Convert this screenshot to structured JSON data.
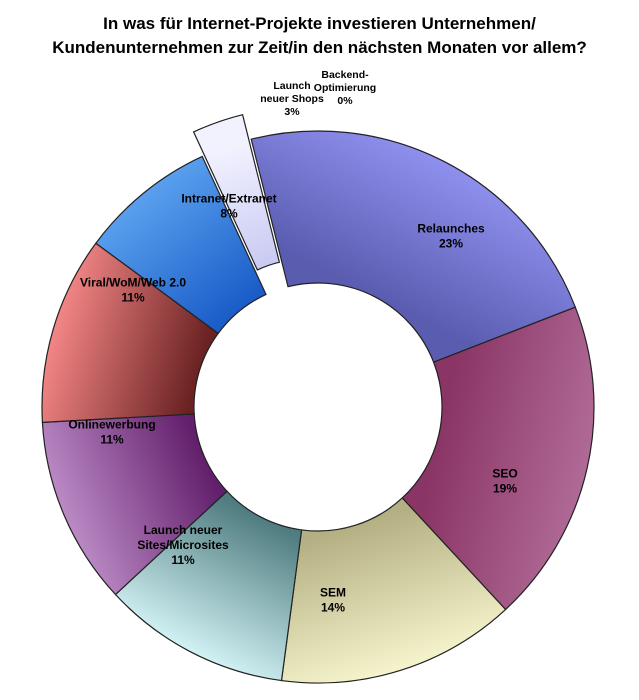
{
  "chart_data": {
    "type": "pie",
    "variant": "doughnut",
    "title": "In was für Internet-Projekte investieren Unternehmen/ Kundenunternehmen zur Zeit/in den nächsten Monaten vor allem?",
    "title_lines": [
      "In was für Internet-Projekte investieren Unternehmen/",
      "Kundenunternehmen zur Zeit/in den nächsten Monaten vor allem?"
    ],
    "legend": "none",
    "slices": [
      {
        "label": "Relaunches",
        "label_lines": [
          "Relaunches"
        ],
        "value": 23,
        "value_label": "23%",
        "color_light": "#8f90ee",
        "color_dark": "#5a5cb0",
        "exploded": false
      },
      {
        "label": "SEO",
        "label_lines": [
          "SEO"
        ],
        "value": 19,
        "value_label": "19%",
        "color_light": "#b06a96",
        "color_dark": "#8a3565",
        "exploded": false
      },
      {
        "label": "SEM",
        "label_lines": [
          "SEM"
        ],
        "value": 14,
        "value_label": "14%",
        "color_light": "#f6f4cc",
        "color_dark": "#b4b083",
        "exploded": false
      },
      {
        "label": "Launch neuer Sites/Microsites",
        "label_lines": [
          "Launch neuer",
          "Sites/Microsites"
        ],
        "value": 11,
        "value_label": "11%",
        "color_light": "#d2f2f4",
        "color_dark": "#4f7c80",
        "exploded": false
      },
      {
        "label": "Onlinewerbung",
        "label_lines": [
          "Onlinewerbung"
        ],
        "value": 11,
        "value_label": "11%",
        "color_light": "#bb8ac5",
        "color_dark": "#621f6b",
        "exploded": false
      },
      {
        "label": "Viral/WoM/Web 2.0",
        "label_lines": [
          "Viral/WoM/Web 2.0"
        ],
        "value": 11,
        "value_label": "11%",
        "color_light": "#f48686",
        "color_dark": "#6a2222",
        "exploded": false
      },
      {
        "label": "Intranet/Extranet",
        "label_lines": [
          "Intranet/Extranet"
        ],
        "value": 8,
        "value_label": "8%",
        "color_light": "#5aa0ee",
        "color_dark": "#1a5cc8",
        "exploded": false
      },
      {
        "label": "Launch neuer Shops",
        "label_lines": [
          "Launch",
          "neuer Shops"
        ],
        "value": 3,
        "value_label": "3%",
        "color_light": "#f2f2ff",
        "color_dark": "#c0c2f0",
        "exploded": true
      },
      {
        "label": "Backend-Optimierung",
        "label_lines": [
          "Backend-",
          "Optimierung"
        ],
        "value": 0,
        "value_label": "0%",
        "color_light": "#ffffff",
        "color_dark": "#ffffff",
        "exploded": false
      }
    ]
  }
}
